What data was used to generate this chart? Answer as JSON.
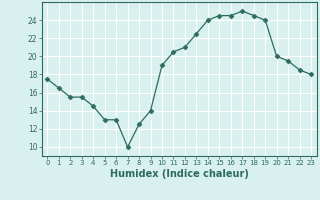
{
  "x": [
    0,
    1,
    2,
    3,
    4,
    5,
    6,
    7,
    8,
    9,
    10,
    11,
    12,
    13,
    14,
    15,
    16,
    17,
    18,
    19,
    20,
    21,
    22,
    23
  ],
  "y": [
    17.5,
    16.5,
    15.5,
    15.5,
    14.5,
    13.0,
    13.0,
    10.0,
    12.5,
    14.0,
    19.0,
    20.5,
    21.0,
    22.5,
    24.0,
    24.5,
    24.5,
    25.0,
    24.5,
    24.0,
    20.0,
    19.5,
    18.5,
    18.0
  ],
  "xlim": [
    -0.5,
    23.5
  ],
  "ylim": [
    9,
    26
  ],
  "yticks": [
    10,
    12,
    14,
    16,
    18,
    20,
    22,
    24
  ],
  "xticks": [
    0,
    1,
    2,
    3,
    4,
    5,
    6,
    7,
    8,
    9,
    10,
    11,
    12,
    13,
    14,
    15,
    16,
    17,
    18,
    19,
    20,
    21,
    22,
    23
  ],
  "xlabel": "Humidex (Indice chaleur)",
  "line_color": "#2e6b5e",
  "marker": "D",
  "marker_size": 2.5,
  "bg_color": "#d8f0ee",
  "grid_color": "#ffffff",
  "axes_color": "#2e6b5e",
  "tick_label_color": "#2e6b5e",
  "xlabel_color": "#2e6b5e",
  "xlabel_fontsize": 7
}
